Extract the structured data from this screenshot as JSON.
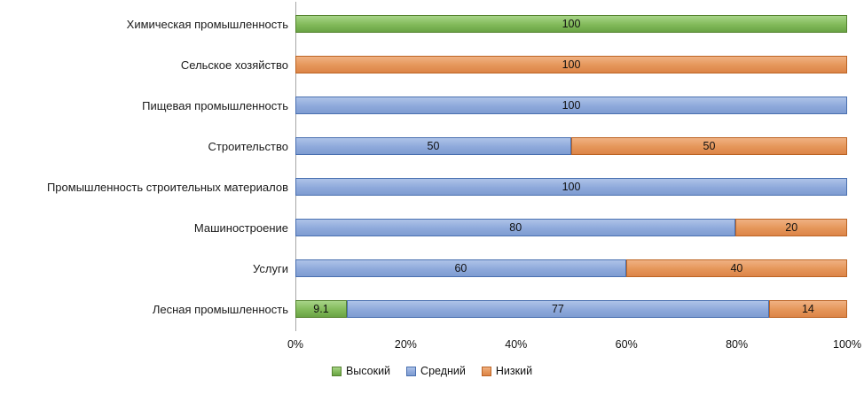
{
  "chart_data": {
    "type": "bar",
    "stacked": true,
    "orientation": "horizontal",
    "title": "",
    "xlabel": "",
    "ylabel": "",
    "xlim": [
      0,
      100
    ],
    "grid": false,
    "legend_position": "bottom",
    "categories": [
      "Химическая промышленность",
      "Сельское хозяйство",
      "Пищевая промышленность",
      "Строительство",
      "Промышленность строительных материалов",
      "Машиностроение",
      "Услуги",
      "Лесная промышленность"
    ],
    "series": [
      {
        "name": "Высокий",
        "key": "high",
        "fill": "#82BA5A",
        "fill_light": "#A8D488",
        "fill_dark": "#69A344",
        "border": "#55832F",
        "values": [
          100,
          0,
          0,
          0,
          0,
          0,
          0,
          9.1
        ]
      },
      {
        "name": "Средний",
        "key": "medium",
        "fill": "#8EA9DB",
        "fill_light": "#AEC3E8",
        "fill_dark": "#7E9CD1",
        "border": "#4A70B0",
        "values": [
          0,
          0,
          100,
          50,
          100,
          80,
          60,
          77
        ]
      },
      {
        "name": "Низкий",
        "key": "low",
        "fill": "#E59659",
        "fill_light": "#F0B183",
        "fill_dark": "#DC8448",
        "border": "#BC6424",
        "values": [
          0,
          100,
          0,
          50,
          0,
          20,
          40,
          14
        ]
      }
    ],
    "x_ticks": [
      "0%",
      "20%",
      "40%",
      "60%",
      "80%",
      "100%"
    ]
  }
}
